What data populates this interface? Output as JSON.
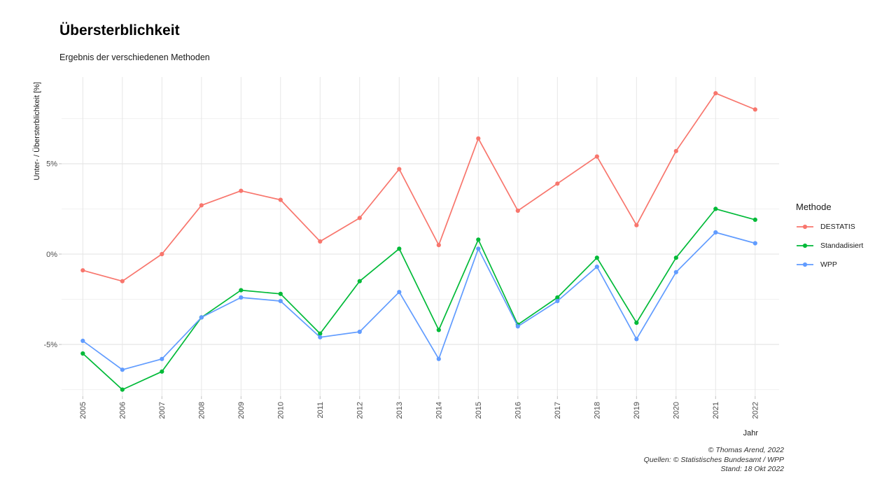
{
  "header": {
    "title": "Übersterblichkeit",
    "subtitle": "Ergebnis der verschiedenen Methoden"
  },
  "chart_data": {
    "type": "line",
    "title": "Übersterblichkeit",
    "subtitle": "Ergebnis der verschiedenen Methoden",
    "xlabel": "Jahr",
    "ylabel": "Unter- / Übersterblichkeit [%]",
    "x": [
      2005,
      2006,
      2007,
      2008,
      2009,
      2010,
      2011,
      2012,
      2013,
      2014,
      2015,
      2016,
      2017,
      2018,
      2019,
      2020,
      2021,
      2022
    ],
    "series": [
      {
        "name": "DESTATIS",
        "color": "#F8766D",
        "values": [
          -0.9,
          -1.5,
          0.0,
          2.7,
          3.5,
          3.0,
          0.7,
          2.0,
          4.7,
          0.5,
          6.4,
          2.4,
          3.9,
          5.4,
          1.6,
          5.7,
          8.9,
          8.0
        ]
      },
      {
        "name": "Standadisiert",
        "color": "#00BA38",
        "values": [
          -5.5,
          -7.5,
          -6.5,
          -3.5,
          -2.0,
          -2.2,
          -4.4,
          -1.5,
          0.3,
          -4.2,
          0.8,
          -3.9,
          -2.4,
          -0.2,
          -3.8,
          -0.2,
          2.5,
          1.9
        ]
      },
      {
        "name": "WPP",
        "color": "#619CFF",
        "values": [
          -4.8,
          -6.4,
          -5.8,
          -3.5,
          -2.4,
          -2.6,
          -4.6,
          -4.3,
          -2.1,
          -5.8,
          0.3,
          -4.0,
          -2.6,
          -0.7,
          -4.7,
          -1.0,
          1.2,
          0.6
        ]
      }
    ],
    "yticks": [
      {
        "value": 5,
        "label": "5%"
      },
      {
        "value": 0,
        "label": "0%"
      },
      {
        "value": -5,
        "label": "-5%"
      }
    ],
    "y_minor_gridlines": [
      7.5,
      2.5,
      -2.5,
      -7.5
    ],
    "ylim": [
      -7.9,
      9.8
    ],
    "grid": true,
    "legend_position": "right"
  },
  "legend": {
    "title": "Methode",
    "items": [
      {
        "label": "DESTATIS",
        "color": "#F8766D"
      },
      {
        "label": "Standadisiert",
        "color": "#00BA38"
      },
      {
        "label": "WPP",
        "color": "#619CFF"
      }
    ]
  },
  "caption": {
    "lines": [
      "© Thomas Arend, 2022",
      "Quellen: © Statistisches Bundesamt / WPP",
      "Stand: 18 Okt 2022"
    ]
  }
}
